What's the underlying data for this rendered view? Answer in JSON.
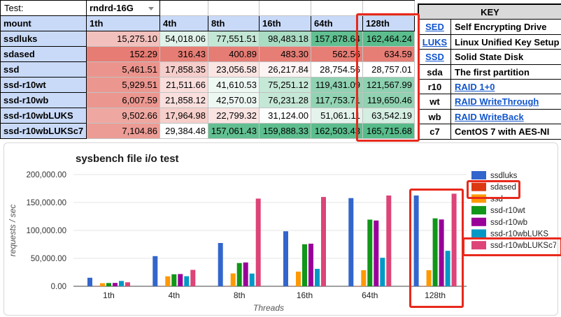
{
  "test_row": {
    "label": "Test:",
    "value": "rndrd-16G"
  },
  "table": {
    "corner": "mount",
    "columns": [
      "1th",
      "4th",
      "8th",
      "16th",
      "64th",
      "128th"
    ],
    "rows": [
      {
        "label": "ssdluks",
        "values": [
          "15,275.10",
          "54,018.06",
          "77,551.51",
          "98,483.18",
          "157,878.64",
          "162,464.24"
        ]
      },
      {
        "label": "sdased",
        "values": [
          "152.29",
          "316.43",
          "400.89",
          "483.30",
          "562.56",
          "634.59"
        ]
      },
      {
        "label": "ssd",
        "values": [
          "5,461.51",
          "17,858.35",
          "23,056.58",
          "26,217.84",
          "28,754.56",
          "28,757.01"
        ]
      },
      {
        "label": "ssd-r10wt",
        "values": [
          "5,929.51",
          "21,511.66",
          "41,610.53",
          "75,251.12",
          "119,431.09",
          "121,567.99"
        ]
      },
      {
        "label": "ssd-r10wb",
        "values": [
          "6,007.59",
          "21,858.12",
          "42,570.03",
          "76,231.28",
          "117,753.71",
          "119,650.46"
        ]
      },
      {
        "label": "ssd-r10wbLUKS",
        "values": [
          "9,502.66",
          "17,964.98",
          "22,799.32",
          "31,124.00",
          "51,061.11",
          "63,542.19"
        ]
      },
      {
        "label": "ssd-r10wbLUKSc7",
        "values": [
          "7,104.86",
          "29,384.48",
          "157,061.43",
          "159,888.33",
          "162,503.43",
          "165,715.68"
        ]
      }
    ]
  },
  "key": {
    "title": "KEY",
    "rows": [
      {
        "abbr": "SED",
        "desc": "Self Encrypting Drive",
        "abbr_link": true,
        "desc_link": false
      },
      {
        "abbr": "LUKS",
        "desc": "Linux Unified Key Setup",
        "abbr_link": true,
        "desc_link": false
      },
      {
        "abbr": "SSD",
        "desc": "Solid State Disk",
        "abbr_link": true,
        "desc_link": false
      },
      {
        "abbr": "sda",
        "desc": "The first partition",
        "abbr_link": false,
        "desc_link": false
      },
      {
        "abbr": "r10",
        "desc": "RAID 1+0",
        "abbr_link": false,
        "desc_link": true
      },
      {
        "abbr": "wt",
        "desc": "RAID WriteThrough",
        "abbr_link": false,
        "desc_link": true
      },
      {
        "abbr": "wb",
        "desc": "RAID WriteBack",
        "abbr_link": false,
        "desc_link": true
      },
      {
        "abbr": "c7",
        "desc": "CentOS 7 with AES-NI",
        "abbr_link": false,
        "desc_link": false
      }
    ]
  },
  "chart_data": {
    "type": "bar",
    "title": "sysbench file i/o test",
    "xlabel": "Threads",
    "ylabel": "requests / sec",
    "categories": [
      "1th",
      "4th",
      "8th",
      "16th",
      "64th",
      "128th"
    ],
    "series": [
      {
        "name": "ssdluks",
        "color": "#3366cc",
        "values": [
          15275.1,
          54018.06,
          77551.51,
          98483.18,
          157878.64,
          162464.24
        ]
      },
      {
        "name": "sdased",
        "color": "#dc3912",
        "values": [
          152.29,
          316.43,
          400.89,
          483.3,
          562.56,
          634.59
        ]
      },
      {
        "name": "ssd",
        "color": "#ff9900",
        "values": [
          5461.51,
          17858.35,
          23056.58,
          26217.84,
          28754.56,
          28757.01
        ]
      },
      {
        "name": "ssd-r10wt",
        "color": "#109618",
        "values": [
          5929.51,
          21511.66,
          41610.53,
          75251.12,
          119431.09,
          121567.99
        ]
      },
      {
        "name": "ssd-r10wb",
        "color": "#990099",
        "values": [
          6007.59,
          21858.12,
          42570.03,
          76231.28,
          117753.71,
          119650.46
        ]
      },
      {
        "name": "ssd-r10wbLUKS",
        "color": "#0099c6",
        "values": [
          9502.66,
          17964.98,
          22799.32,
          31124.0,
          51061.11,
          63542.19
        ]
      },
      {
        "name": "ssd-r10wbLUKSc7",
        "color": "#dd4477",
        "values": [
          7104.86,
          29384.48,
          157061.43,
          159888.33,
          162503.43,
          165715.68
        ]
      }
    ],
    "ylim": [
      0,
      200000
    ],
    "yticks": [
      "0.00",
      "50,000.00",
      "100,000.00",
      "150,000.00",
      "200,000.00"
    ],
    "legend_position": "right",
    "grid": true
  },
  "colors": {
    "header_bg": "#c9daf8",
    "key_header_bg": "#d9d9d9",
    "link": "#1155cc",
    "annotation": "#e8291c",
    "scale": {
      "low": "#e67c73",
      "mid": "#ffffff",
      "high": "#57bb8a",
      "min": 152.29,
      "midpoint": 28756,
      "max": 165715.68
    }
  }
}
